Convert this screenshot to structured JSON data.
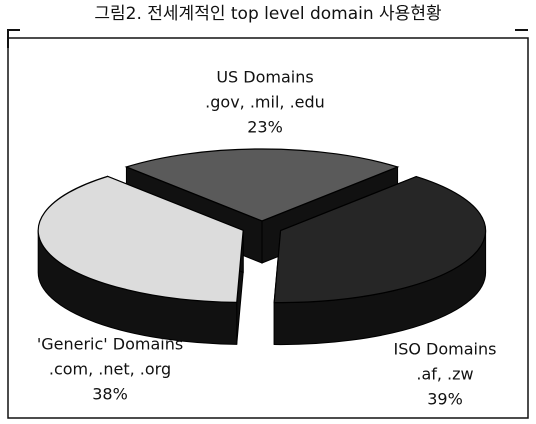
{
  "chart_data": {
    "type": "pie3d",
    "title": "그림2. 전세계적인 top level domain 사용현황",
    "categories": [
      "US Domains",
      "ISO Domains",
      "'Generic' Domains"
    ],
    "category_details": [
      ".gov, .mil, .edu",
      ".af, .zw",
      ".com, .net, .org"
    ],
    "values": [
      23,
      39,
      38
    ],
    "value_labels": [
      "23%",
      "39%",
      "38%"
    ],
    "colors": [
      "#5a5a5a",
      "#262626",
      "#dcdcdc"
    ]
  }
}
